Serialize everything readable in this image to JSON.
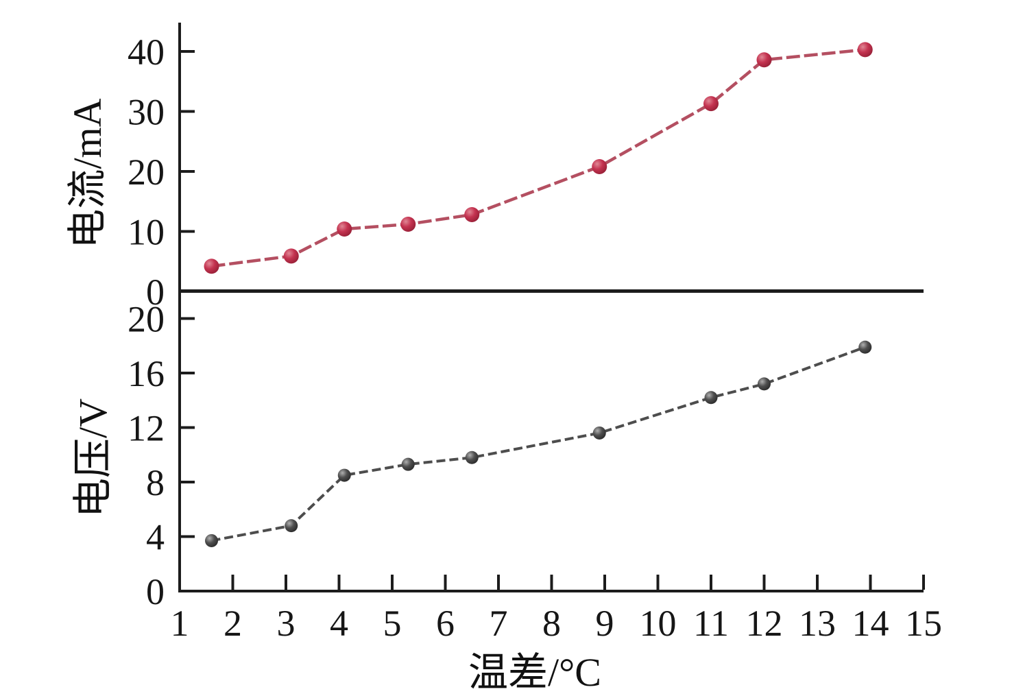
{
  "figure": {
    "background": "#ffffff",
    "axis_color": "#1c1c1c"
  },
  "chart_data": [
    {
      "type": "line",
      "panel": "top",
      "ylabel": "电流/mA",
      "y_ticks": [
        0,
        10,
        20,
        30,
        40
      ],
      "ylim": [
        0,
        44
      ],
      "x": [
        1.6,
        3.1,
        4.1,
        5.3,
        6.5,
        8.9,
        11.0,
        12.0,
        13.9
      ],
      "series": [
        {
          "name": "电流",
          "values": [
            4.2,
            5.9,
            10.4,
            11.2,
            12.8,
            20.8,
            31.3,
            38.6,
            40.3
          ],
          "line_color": "#b44f61",
          "marker_color": "#c03a50",
          "marker": "circle",
          "line_style": "dashed"
        }
      ]
    },
    {
      "type": "line",
      "panel": "bottom",
      "ylabel": "电压/V",
      "xlabel": "温差/°C",
      "y_ticks": [
        0,
        4,
        8,
        12,
        16,
        20
      ],
      "ylim": [
        0,
        22
      ],
      "x_ticks": [
        1,
        2,
        3,
        4,
        5,
        6,
        7,
        8,
        9,
        10,
        11,
        12,
        13,
        14,
        15
      ],
      "xlim": [
        1,
        15
      ],
      "x": [
        1.6,
        3.1,
        4.1,
        5.3,
        6.5,
        8.9,
        11.0,
        12.0,
        13.9
      ],
      "series": [
        {
          "name": "电压",
          "values": [
            3.7,
            4.8,
            8.5,
            9.3,
            9.8,
            11.6,
            14.2,
            15.2,
            17.9
          ],
          "line_color": "#4d4d4d",
          "marker_color": "#3f3f3f",
          "marker": "circle",
          "line_style": "dashed"
        }
      ]
    }
  ]
}
